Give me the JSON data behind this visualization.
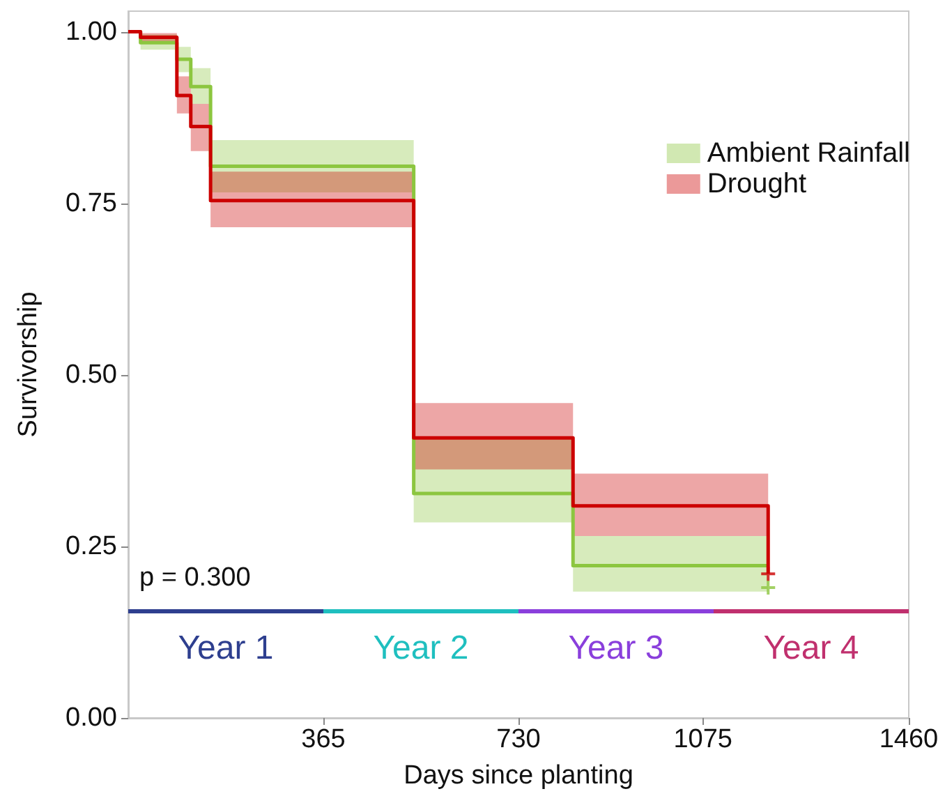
{
  "chart_data": {
    "type": "step",
    "xlabel": "Days since planting",
    "ylabel": "Survivorship",
    "xlim": [
      0,
      1460
    ],
    "xticks": [
      365,
      730,
      1075,
      1460
    ],
    "ylim": [
      0,
      1.03
    ],
    "yticks": [
      {
        "value": 0,
        "label": "0.00"
      },
      {
        "value": 0.25,
        "label": "0.25"
      },
      {
        "value": 0.5,
        "label": "0.50"
      },
      {
        "value": 0.75,
        "label": "0.75"
      },
      {
        "value": 1,
        "label": "1.00"
      }
    ],
    "series": [
      {
        "name": "Ambient Rainfall",
        "color": "#8cc63f",
        "x": [
          0,
          23,
          91,
          117,
          154,
          534,
          832,
          1197
        ],
        "values": [
          1,
          0.984,
          0.96,
          0.92,
          0.804,
          0.327,
          0.222,
          0.222
        ],
        "lower": [
          null,
          0.974,
          0.941,
          0.895,
          0.766,
          0.285,
          0.184,
          0.184
        ],
        "upper": [
          null,
          0.996,
          0.978,
          0.947,
          0.842,
          0.406,
          0.265,
          0.265
        ]
      },
      {
        "name": "Drought",
        "color": "#cc0000",
        "x": [
          0,
          23,
          91,
          117,
          154,
          534,
          832,
          1197
        ],
        "values": [
          1,
          0.992,
          0.907,
          0.862,
          0.754,
          0.408,
          0.309,
          0.21
        ],
        "lower": [
          null,
          0.985,
          0.881,
          0.826,
          0.715,
          0.362,
          0.265,
          0.265
        ],
        "upper": [
          null,
          0.998,
          0.935,
          0.895,
          0.796,
          0.459,
          0.356,
          0.356
        ]
      },
      {
        "type": "scatter",
        "color": "#8cc63f",
        "x": [
          1197
        ],
        "values": [
          0.19
        ],
        "marker": "cross"
      },
      {
        "type": "scatter",
        "color": "#cc0000",
        "x": [
          1197
        ],
        "values": [
          0.21
        ],
        "marker": "cross"
      }
    ],
    "annotations": [
      "p = 0.300",
      "Year 1",
      "Year 2",
      "Year 3",
      "Year 4"
    ],
    "legend": "top right",
    "grid": false,
    "line_style": "solid"
  }
}
